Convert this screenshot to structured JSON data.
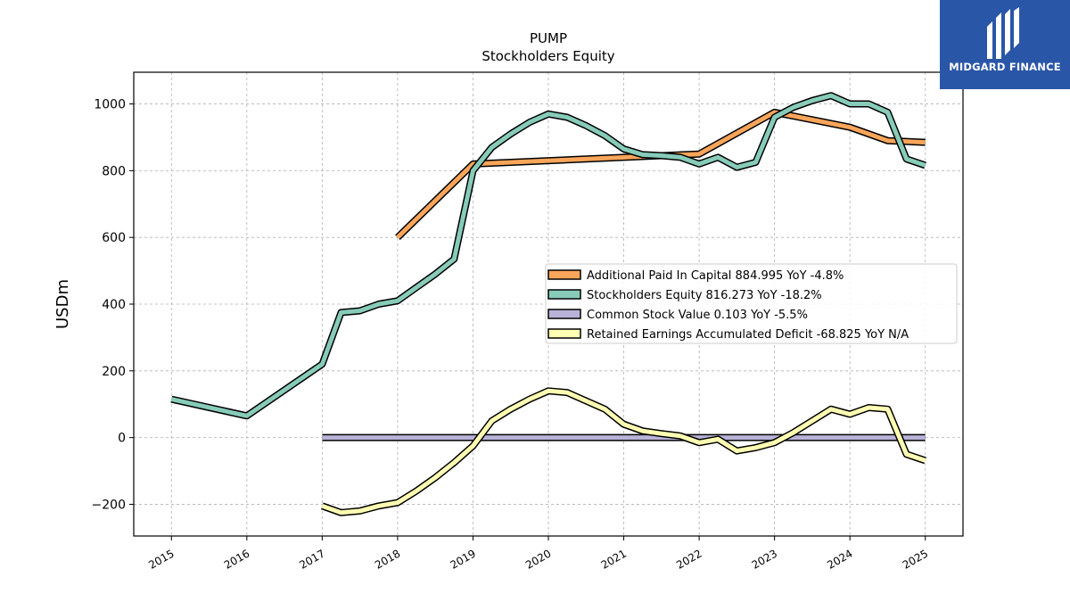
{
  "chart_data": {
    "type": "line",
    "title": "PUMP",
    "subtitle": "Stockholders  Equity",
    "xlabel": "",
    "ylabel": "USDm",
    "xlim": [
      2014.5,
      2025.5
    ],
    "ylim": [
      -295,
      1095
    ],
    "x_ticks": [
      2015,
      2016,
      2017,
      2018,
      2019,
      2020,
      2021,
      2022,
      2023,
      2024,
      2025
    ],
    "x_tick_labels": [
      "2015",
      "2016",
      "2017",
      "2018",
      "2019",
      "2020",
      "2021",
      "2022",
      "2023",
      "2024",
      "2025"
    ],
    "y_ticks": [
      -200,
      0,
      200,
      400,
      600,
      800,
      1000
    ],
    "y_tick_labels": [
      "−200",
      "0",
      "200",
      "400",
      "600",
      "800",
      "1000"
    ],
    "grid": true,
    "legend_position": "center-right",
    "series": [
      {
        "name": "Additional Paid In Capital  884.995 YoY -4.8%",
        "color": "#f9a55a",
        "x": [
          2018.0,
          2019.0,
          2022.0,
          2023.0,
          2024.0,
          2024.5,
          2025.0
        ],
        "y": [
          600,
          820,
          850,
          975,
          930,
          890,
          885
        ]
      },
      {
        "name": "Stockholders Equity  816.273 YoY -18.2%",
        "color": "#87cbb9",
        "x": [
          2015.0,
          2016.0,
          2017.0,
          2017.25,
          2017.5,
          2017.75,
          2018.0,
          2018.25,
          2018.5,
          2018.75,
          2019.0,
          2019.25,
          2019.5,
          2019.75,
          2020.0,
          2020.25,
          2020.5,
          2020.75,
          2021.0,
          2021.25,
          2021.5,
          2021.75,
          2022.0,
          2022.25,
          2022.5,
          2022.75,
          2023.0,
          2023.25,
          2023.5,
          2023.75,
          2024.0,
          2024.25,
          2024.5,
          2024.75,
          2025.0
        ],
        "y": [
          115,
          65,
          220,
          375,
          380,
          400,
          410,
          450,
          490,
          535,
          800,
          870,
          910,
          945,
          970,
          960,
          935,
          905,
          865,
          848,
          845,
          840,
          820,
          840,
          810,
          825,
          960,
          990,
          1010,
          1025,
          1000,
          1000,
          975,
          835,
          816
        ]
      },
      {
        "name": "Common Stock Value  0.103 YoY -5.5%",
        "color": "#b9b3d8",
        "x": [
          2017.0,
          2025.0
        ],
        "y": [
          0,
          0
        ]
      },
      {
        "name": "Retained Earnings Accumulated Deficit  -68.825 YoY N/A",
        "color": "#ffffb3",
        "x": [
          2017.0,
          2017.25,
          2017.5,
          2017.75,
          2018.0,
          2018.25,
          2018.5,
          2018.75,
          2019.0,
          2019.25,
          2019.5,
          2019.75,
          2020.0,
          2020.25,
          2020.5,
          2020.75,
          2021.0,
          2021.25,
          2021.5,
          2021.75,
          2022.0,
          2022.25,
          2022.5,
          2022.75,
          2023.0,
          2023.25,
          2023.5,
          2023.75,
          2024.0,
          2024.25,
          2024.5,
          2024.75,
          2025.0
        ],
        "y": [
          -205,
          -225,
          -220,
          -205,
          -195,
          -160,
          -120,
          -75,
          -25,
          50,
          85,
          115,
          140,
          135,
          110,
          85,
          40,
          20,
          12,
          5,
          -15,
          -5,
          -40,
          -30,
          -15,
          15,
          50,
          85,
          70,
          90,
          85,
          -50,
          -68.825
        ]
      }
    ]
  },
  "logo": {
    "text": "MIDGARD FINANCE",
    "background": "#2a56a8"
  }
}
